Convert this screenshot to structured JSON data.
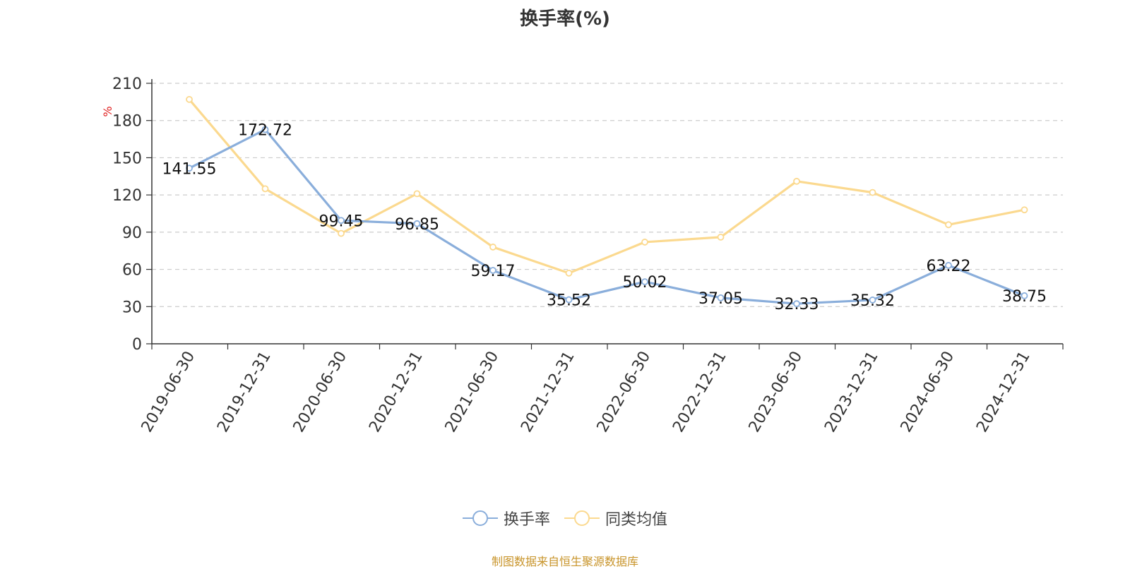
{
  "chart_data": {
    "type": "line",
    "title": "换手率(%)",
    "ylabel": "%",
    "ylim": [
      0,
      210
    ],
    "yticks": [
      0,
      30,
      60,
      90,
      120,
      150,
      180,
      210
    ],
    "categories": [
      "2019-06-30",
      "2019-12-31",
      "2020-06-30",
      "2020-12-31",
      "2021-06-30",
      "2021-12-31",
      "2022-06-30",
      "2022-12-31",
      "2023-06-30",
      "2023-12-31",
      "2024-06-30",
      "2024-12-31"
    ],
    "series": [
      {
        "name": "换手率",
        "color": "#8aaedb",
        "show_labels": true,
        "values": [
          141.55,
          172.72,
          99.45,
          96.85,
          59.17,
          35.52,
          50.02,
          37.05,
          32.33,
          35.32,
          63.22,
          38.75
        ],
        "labels": [
          "141.55",
          "172.72",
          "99.45",
          "96.85",
          "59.17",
          "35.52",
          "50.02",
          "37.05",
          "32.33",
          "35.32",
          "63.22",
          "38.75"
        ]
      },
      {
        "name": "同类均值",
        "color": "#fbd98f",
        "show_labels": false,
        "values": [
          197,
          125,
          89,
          121,
          78,
          57,
          82,
          86,
          131,
          122,
          96,
          108
        ]
      }
    ],
    "grid": true,
    "legend_position": "bottom-center"
  },
  "ylabel_color": "#e02020",
  "source_text": "制图数据来自恒生聚源数据库",
  "source_color": "#c8942a"
}
